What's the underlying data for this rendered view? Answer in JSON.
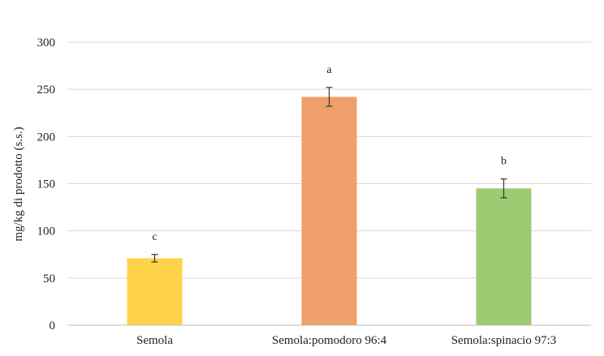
{
  "chart_data": {
    "type": "bar",
    "categories": [
      "Semola",
      "Semola:pomodoro 96:4",
      "Semola:spinacio 97:3"
    ],
    "values": [
      71,
      242,
      145
    ],
    "errors": [
      4,
      10,
      10
    ],
    "significance_letters": [
      "c",
      "a",
      "b"
    ],
    "colors": [
      "#FFD24C",
      "#EFA06A",
      "#9DCB73"
    ],
    "title": "",
    "xlabel": "",
    "ylabel": "mg/kg di prodotto (s.s.)",
    "ylim": [
      0,
      300
    ],
    "yticks": [
      0,
      50,
      100,
      150,
      200,
      250,
      300
    ],
    "grid": true,
    "legend": "none"
  }
}
